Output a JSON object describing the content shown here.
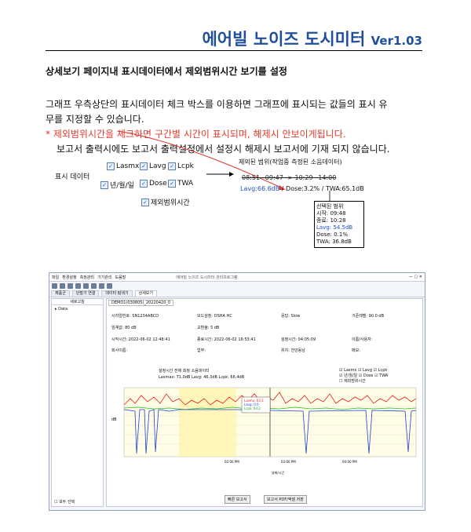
{
  "header": {
    "title": "에어빌 노이즈 도시미터",
    "version": "Ver1.03"
  },
  "section_title": "상세보기 페이지내 표시데이터에서 제외범위시간 보기를 설정",
  "paragraph1_line1": "그래프 우측상단의 표시데이터 체크 박스를 이용하면 그래프에 표시되는 값들의 표시 유",
  "paragraph1_line2": "무를 지정할 수 있습니다.",
  "note_red": "* 제외범위시간을 체크하면 구간별 시간이 표시되며, 해제시 안보이게됩니다.",
  "paragraph2": "보고서 출력시에도 보고서 출력설정에서 설정시 해제시 보고서에 기재 되지 않습니다.",
  "display_data": {
    "label": "표시 데이터",
    "options": [
      "Lasmx",
      "Lavg",
      "Lcpk",
      "년/월/일",
      "Dose",
      "TWA"
    ],
    "exclude_label": "제외범위시간"
  },
  "legend": {
    "title": "제외된 범위(작업중 측정된 소음데이터)",
    "struck_ranges": "08:51~09:47 -> 10:29~14:00",
    "lavg": "Lavg:66.6dB",
    "rest": "/ Dose:3.2%  / TWA:65.1dB"
  },
  "selection": {
    "lines": [
      "선택된 범위",
      "시작: 09:48",
      "종료: 10:28",
      "Lavg: 54.5dB",
      "Dose: 0.1%",
      "TWA: 36.8dB"
    ]
  },
  "app": {
    "window_title": "에어빌 노이즈 도시미터 관리프로그램",
    "menu": [
      "파일",
      "환경설정",
      "측정관리",
      "기기관리",
      "도움말"
    ],
    "tabs": [
      "제품군",
      "단말기 연결",
      "데이터 탐색기",
      "상세보기"
    ],
    "tree_header": "새로고침",
    "tree_item": "Data",
    "doc_tab": "DEMO1(030805)_20220420_0",
    "fields": [
      "시리얼번호: SN1234ABCD",
      "모드설정: OSHA HC",
      "응답: Slow",
      "기준레벨: 90.0 dB",
      "임계값: 80 dB",
      "교환율: 5 dB",
      "시작시간: 2022-06-02 12:48:41",
      "종료시간: 2022-06-02 16:53:41",
      "설정시간: 04:05:09",
      "이름/사용자:",
      "회사이름:",
      "업무:",
      "위치: 천안동남",
      "메모:"
    ],
    "chart_title": "설정시간 전체 측정 소음데이터",
    "chart_sub": "Lasmax: 71.0dB  Lavg: 46.3dB  Lcpk: 66.4dB",
    "tooltip": [
      "Lasmx: 63.3",
      "Lavg: 0.0",
      "Lcpk: 64.2"
    ],
    "ylabel": "dB",
    "yticks": [
      "84-",
      "79",
      "73",
      "68",
      "62",
      "56",
      "50",
      "45",
      "39",
      "34",
      "28",
      "23",
      "17",
      "11",
      "6",
      "0"
    ],
    "xticks": [
      "02:00 PM\n2022-06-02",
      "03:00 PM\n2022-06-02",
      "04:00 PM\n2022-06-02"
    ],
    "xlabel": "날짜/시간",
    "buttons": [
      "빠른 보고서",
      "보고서 PDF/엑셀 저장"
    ],
    "select_all": "모두 선택"
  }
}
